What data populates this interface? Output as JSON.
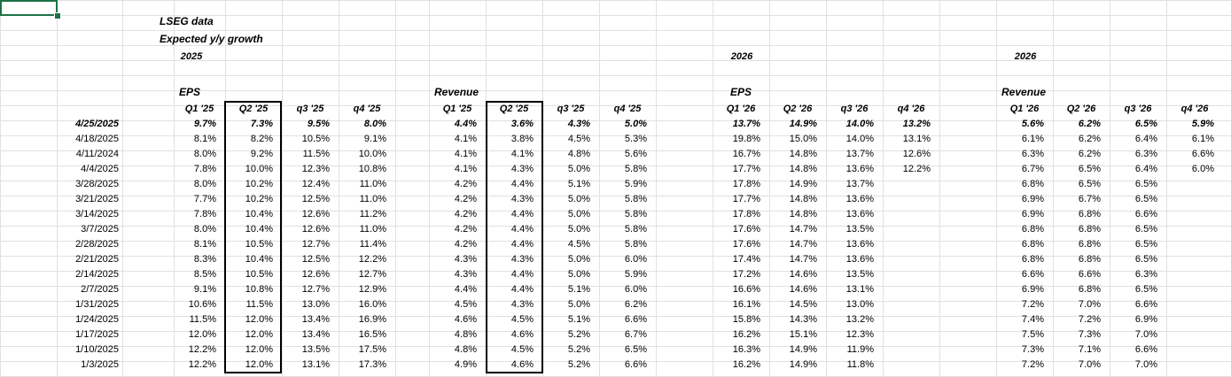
{
  "sheet": {
    "source_title": "LSEG data",
    "subtitle": "Expected y/y growth",
    "year_2025": "2025",
    "year_2026_eps": "2026",
    "year_2026_rev": "2026",
    "groups": {
      "eps_2025": "EPS",
      "revenue_2025": "Revenue",
      "eps_2026": "EPS",
      "revenue_2026": "Revenue"
    },
    "headers": {
      "eps_2025": [
        "Q1 '25",
        "Q2 '25",
        "q3 '25",
        "q4 '25"
      ],
      "revenue_2025": [
        "Q1 '25",
        "Q2 '25",
        "q3 '25",
        "q4 '25"
      ],
      "eps_2026": [
        "Q1 '26",
        "Q2 '26",
        "q3 '26",
        "q4 '26"
      ],
      "revenue_2026": [
        "Q1 '26",
        "Q2 '26",
        "q3 '26",
        "q4 '26"
      ]
    },
    "rows": [
      {
        "date": "4/25/2025",
        "eps25": [
          "9.7%",
          "7.3%",
          "9.5%",
          "8.0%"
        ],
        "rev25": [
          "4.4%",
          "3.6%",
          "4.3%",
          "5.0%"
        ],
        "eps26": [
          "13.7%",
          "14.9%",
          "14.0%",
          "13.2%"
        ],
        "rev26": [
          "5.6%",
          "6.2%",
          "6.5%",
          "5.9%"
        ]
      },
      {
        "date": "4/18/2025",
        "eps25": [
          "8.1%",
          "8.2%",
          "10.5%",
          "9.1%"
        ],
        "rev25": [
          "4.1%",
          "3.8%",
          "4.5%",
          "5.3%"
        ],
        "eps26": [
          "19.8%",
          "15.0%",
          "14.0%",
          "13.1%"
        ],
        "rev26": [
          "6.1%",
          "6.2%",
          "6.4%",
          "6.1%"
        ]
      },
      {
        "date": "4/11/2024",
        "eps25": [
          "8.0%",
          "9.2%",
          "11.5%",
          "10.0%"
        ],
        "rev25": [
          "4.1%",
          "4.1%",
          "4.8%",
          "5.6%"
        ],
        "eps26": [
          "16.7%",
          "14.8%",
          "13.7%",
          "12.6%"
        ],
        "rev26": [
          "6.3%",
          "6.2%",
          "6.3%",
          "6.6%"
        ]
      },
      {
        "date": "4/4/2025",
        "eps25": [
          "7.8%",
          "10.0%",
          "12.3%",
          "10.8%"
        ],
        "rev25": [
          "4.1%",
          "4.3%",
          "5.0%",
          "5.8%"
        ],
        "eps26": [
          "17.7%",
          "14.8%",
          "13.6%",
          "12.2%"
        ],
        "rev26": [
          "6.7%",
          "6.5%",
          "6.4%",
          "6.0%"
        ]
      },
      {
        "date": "3/28/2025",
        "eps25": [
          "8.0%",
          "10.2%",
          "12.4%",
          "11.0%"
        ],
        "rev25": [
          "4.2%",
          "4.4%",
          "5.1%",
          "5.9%"
        ],
        "eps26": [
          "17.8%",
          "14.9%",
          "13.7%",
          ""
        ],
        "rev26": [
          "6.8%",
          "6.5%",
          "6.5%",
          ""
        ]
      },
      {
        "date": "3/21/2025",
        "eps25": [
          "7.7%",
          "10.2%",
          "12.5%",
          "11.0%"
        ],
        "rev25": [
          "4.2%",
          "4.3%",
          "5.0%",
          "5.8%"
        ],
        "eps26": [
          "17.7%",
          "14.8%",
          "13.6%",
          ""
        ],
        "rev26": [
          "6.9%",
          "6.7%",
          "6.5%",
          ""
        ]
      },
      {
        "date": "3/14/2025",
        "eps25": [
          "7.8%",
          "10.4%",
          "12.6%",
          "11.2%"
        ],
        "rev25": [
          "4.2%",
          "4.4%",
          "5.0%",
          "5.8%"
        ],
        "eps26": [
          "17.8%",
          "14.8%",
          "13.6%",
          ""
        ],
        "rev26": [
          "6.9%",
          "6.8%",
          "6.6%",
          ""
        ]
      },
      {
        "date": "3/7/2025",
        "eps25": [
          "8.0%",
          "10.4%",
          "12.6%",
          "11.0%"
        ],
        "rev25": [
          "4.2%",
          "4.4%",
          "5.0%",
          "5.8%"
        ],
        "eps26": [
          "17.6%",
          "14.7%",
          "13.5%",
          ""
        ],
        "rev26": [
          "6.8%",
          "6.8%",
          "6.5%",
          ""
        ]
      },
      {
        "date": "2/28/2025",
        "eps25": [
          "8.1%",
          "10.5%",
          "12.7%",
          "11.4%"
        ],
        "rev25": [
          "4.2%",
          "4.4%",
          "4.5%",
          "5.8%"
        ],
        "eps26": [
          "17.6%",
          "14.7%",
          "13.6%",
          ""
        ],
        "rev26": [
          "6.8%",
          "6.8%",
          "6.5%",
          ""
        ]
      },
      {
        "date": "2/21/2025",
        "eps25": [
          "8.3%",
          "10.4%",
          "12.5%",
          "12.2%"
        ],
        "rev25": [
          "4.3%",
          "4.3%",
          "5.0%",
          "6.0%"
        ],
        "eps26": [
          "17.4%",
          "14.7%",
          "13.6%",
          ""
        ],
        "rev26": [
          "6.8%",
          "6.8%",
          "6.5%",
          ""
        ]
      },
      {
        "date": "2/14/2025",
        "eps25": [
          "8.5%",
          "10.5%",
          "12.6%",
          "12.7%"
        ],
        "rev25": [
          "4.3%",
          "4.4%",
          "5.0%",
          "5.9%"
        ],
        "eps26": [
          "17.2%",
          "14.6%",
          "13.5%",
          ""
        ],
        "rev26": [
          "6.6%",
          "6.6%",
          "6.3%",
          ""
        ]
      },
      {
        "date": "2/7/2025",
        "eps25": [
          "9.1%",
          "10.8%",
          "12.7%",
          "12.9%"
        ],
        "rev25": [
          "4.4%",
          "4.4%",
          "5.1%",
          "6.0%"
        ],
        "eps26": [
          "16.6%",
          "14.6%",
          "13.1%",
          ""
        ],
        "rev26": [
          "6.9%",
          "6.8%",
          "6.5%",
          ""
        ]
      },
      {
        "date": "1/31/2025",
        "eps25": [
          "10.6%",
          "11.5%",
          "13.0%",
          "16.0%"
        ],
        "rev25": [
          "4.5%",
          "4.3%",
          "5.0%",
          "6.2%"
        ],
        "eps26": [
          "16.1%",
          "14.5%",
          "13.0%",
          ""
        ],
        "rev26": [
          "7.2%",
          "7.0%",
          "6.6%",
          ""
        ]
      },
      {
        "date": "1/24/2025",
        "eps25": [
          "11.5%",
          "12.0%",
          "13.4%",
          "16.9%"
        ],
        "rev25": [
          "4.6%",
          "4.5%",
          "5.1%",
          "6.6%"
        ],
        "eps26": [
          "15.8%",
          "14.3%",
          "13.2%",
          ""
        ],
        "rev26": [
          "7.4%",
          "7.2%",
          "6.9%",
          ""
        ]
      },
      {
        "date": "1/17/2025",
        "eps25": [
          "12.0%",
          "12.0%",
          "13.4%",
          "16.5%"
        ],
        "rev25": [
          "4.8%",
          "4.6%",
          "5.2%",
          "6.7%"
        ],
        "eps26": [
          "16.2%",
          "15.1%",
          "12.3%",
          ""
        ],
        "rev26": [
          "7.5%",
          "7.3%",
          "7.0%",
          ""
        ]
      },
      {
        "date": "1/10/2025",
        "eps25": [
          "12.2%",
          "12.0%",
          "13.5%",
          "17.5%"
        ],
        "rev25": [
          "4.8%",
          "4.5%",
          "5.2%",
          "6.5%"
        ],
        "eps26": [
          "16.3%",
          "14.9%",
          "11.9%",
          ""
        ],
        "rev26": [
          "7.3%",
          "7.1%",
          "6.6%",
          ""
        ]
      },
      {
        "date": "1/3/2025",
        "eps25": [
          "12.2%",
          "12.0%",
          "13.1%",
          "17.3%"
        ],
        "rev25": [
          "4.9%",
          "4.6%",
          "5.2%",
          "6.6%"
        ],
        "eps26": [
          "16.2%",
          "14.9%",
          "11.8%",
          ""
        ],
        "rev26": [
          "7.2%",
          "7.0%",
          "7.0%",
          ""
        ]
      }
    ]
  }
}
